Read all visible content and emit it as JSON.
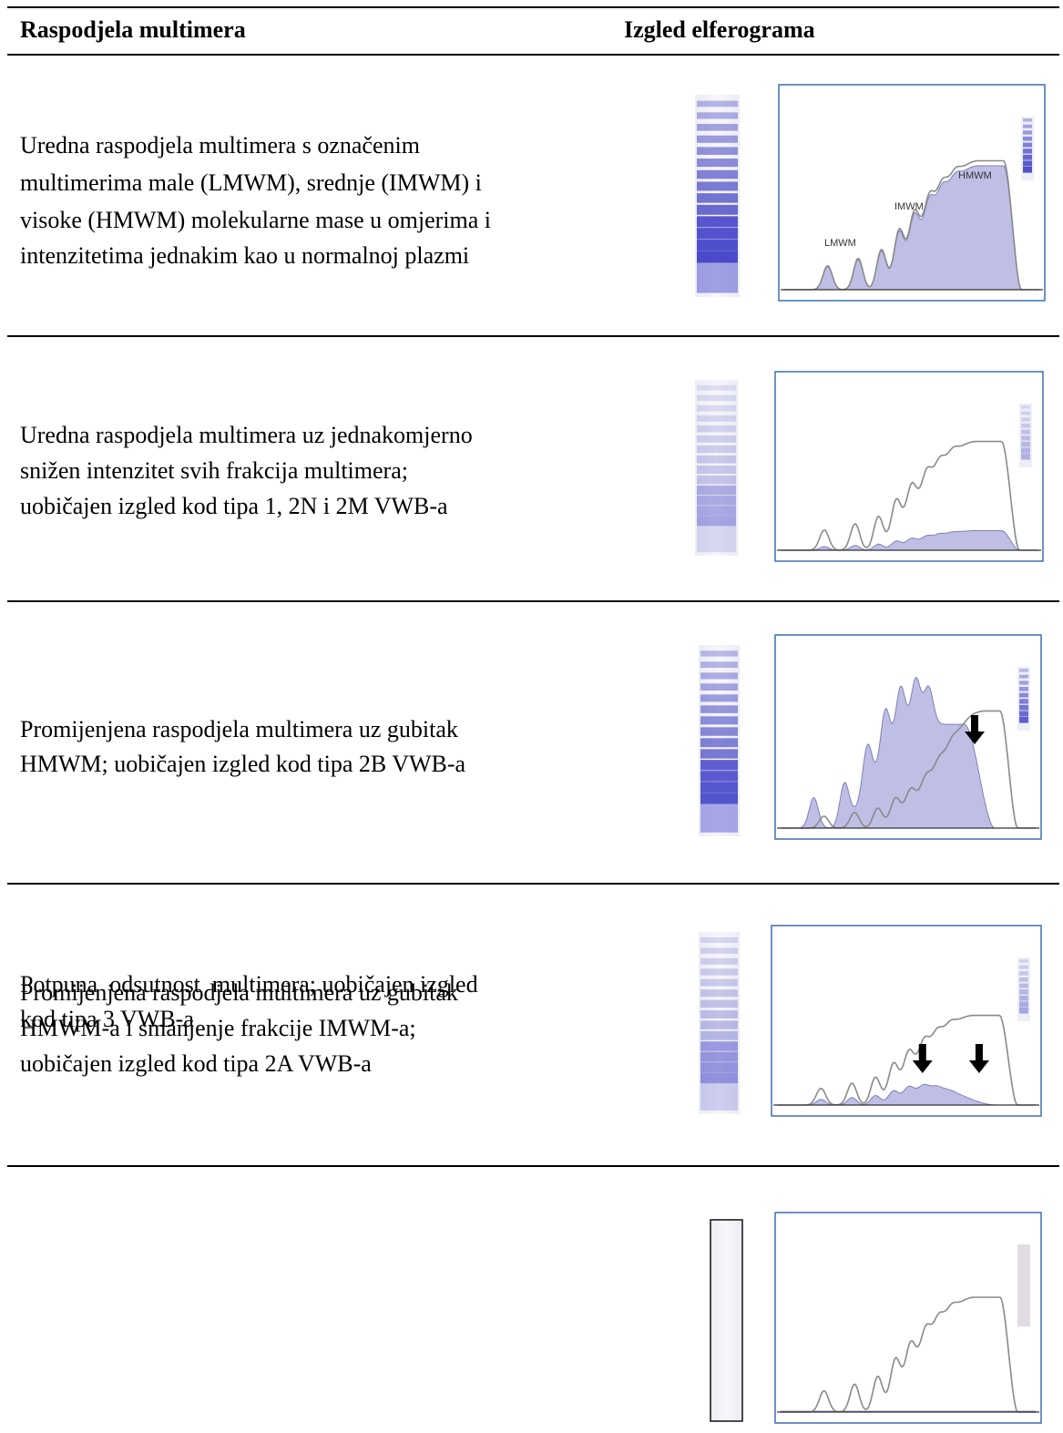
{
  "table": {
    "header": [
      "Raspodjela multimera",
      "Izgled elferograma"
    ],
    "rows": [
      {
        "text": [
          "Uredna raspodjela multimera s označenim",
          "multimerima male (LMWM), srednje (IMWM) i",
          "visoke (HMWM) molekularne mase u omjerima i",
          "intenzitetima jednakim kao u normalnoj plazmi"
        ],
        "labels": [
          "LMWM",
          "IMWM",
          "HMWM"
        ]
      },
      {
        "text": [
          "Uredna raspodjela multimera uz jednakomjerno",
          "snižen intenzitet svih frakcija multimera;",
          "uobičajen izgled kod tipa 1, 2N i 2M VWB-a"
        ]
      },
      {
        "text": [
          "Promijenjena raspodjela multimera uz gubitak",
          "HMWM; uobičajen izgled kod tipa 2B VWB-a"
        ]
      },
      {
        "text": [
          "Promijenjena raspodjela multimera uz gubitak",
          "HMWM-a i smanjenje frakcije IMWM-a;",
          "uobičajen izgled kod tipa 2A VWB-a"
        ]
      },
      {
        "text": [
          "Potpuna  odsutnost  multimera; uobičajen izgled",
          "kod tipa 3 VWB-a"
        ]
      }
    ]
  }
}
